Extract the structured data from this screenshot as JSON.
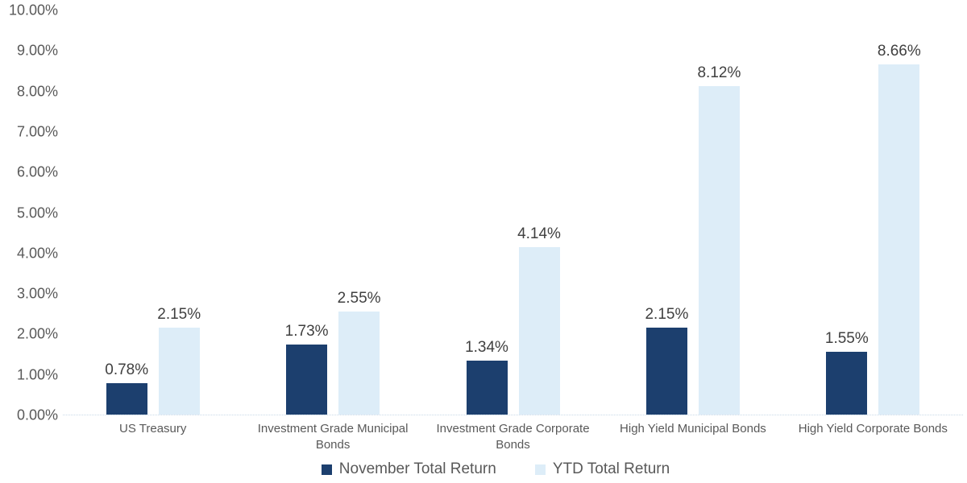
{
  "colors": {
    "november": "#1c3f6e",
    "ytd": "#ddedf8",
    "data_label_text": "#404040",
    "axis_text": "#595959",
    "baseline": "#c9d9e7",
    "background": "#ffffff"
  },
  "chart_data": {
    "type": "bar",
    "title": "",
    "xlabel": "",
    "ylabel": "",
    "categories": [
      "US Treasury",
      "Investment Grade Municipal Bonds",
      "Investment Grade Corporate Bonds",
      "High Yield Municipal Bonds",
      "High Yield Corporate Bonds"
    ],
    "series": [
      {
        "name": "November Total Return",
        "color_key": "november",
        "values": [
          0.78,
          1.73,
          1.34,
          2.15,
          1.55
        ],
        "labels": [
          "0.78%",
          "1.73%",
          "1.34%",
          "2.15%",
          "1.55%"
        ]
      },
      {
        "name": "YTD Total Return",
        "color_key": "ytd",
        "values": [
          2.15,
          2.55,
          4.14,
          8.12,
          8.66
        ],
        "labels": [
          "2.15%",
          "2.55%",
          "4.14%",
          "8.12%",
          "8.66%"
        ]
      }
    ],
    "ylim": [
      0,
      10
    ],
    "y_ticks": [
      "0.00%",
      "1.00%",
      "2.00%",
      "3.00%",
      "4.00%",
      "5.00%",
      "6.00%",
      "7.00%",
      "8.00%",
      "9.00%",
      "10.00%"
    ],
    "grid": false,
    "legend_position": "bottom"
  }
}
